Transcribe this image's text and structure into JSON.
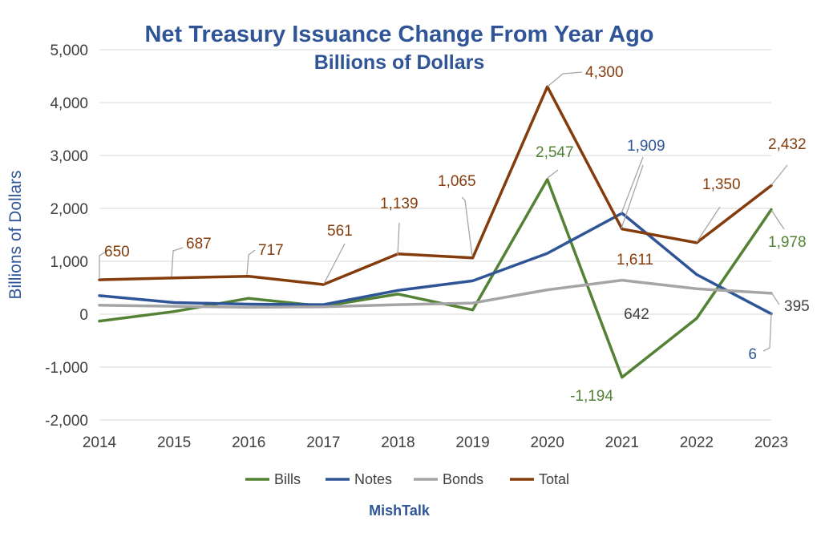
{
  "chart_data": {
    "type": "line",
    "title": "Net Treasury Issuance Change From Year Ago",
    "subtitle": "Billions of Dollars",
    "xlabel": "",
    "ylabel": "Billions of Dollars",
    "ylim": [
      -2000,
      5000
    ],
    "yticks": [
      -2000,
      -1000,
      0,
      1000,
      2000,
      3000,
      4000,
      5000
    ],
    "ytick_labels": [
      "-2,000",
      "-1,000",
      "0",
      "1,000",
      "2,000",
      "3,000",
      "4,000",
      "5,000"
    ],
    "x": [
      "2014",
      "2015",
      "2016",
      "2017",
      "2018",
      "2019",
      "2020",
      "2021",
      "2022",
      "2023"
    ],
    "grid": true,
    "legend_position": "bottom",
    "series": [
      {
        "name": "Bills",
        "color": "#548235",
        "values": [
          -130,
          50,
          300,
          150,
          380,
          80,
          2547,
          -1194,
          -80,
          1978
        ]
      },
      {
        "name": "Notes",
        "color": "#2f5597",
        "values": [
          350,
          220,
          190,
          180,
          450,
          630,
          1150,
          1909,
          750,
          6
        ]
      },
      {
        "name": "Bonds",
        "color": "#a5a5a5",
        "values": [
          170,
          150,
          130,
          140,
          180,
          210,
          460,
          642,
          480,
          395
        ]
      },
      {
        "name": "Total",
        "color": "#843c0c",
        "values": [
          650,
          687,
          717,
          561,
          1139,
          1065,
          4300,
          1611,
          1350,
          2432
        ]
      }
    ],
    "annotations": [
      {
        "series": "Total",
        "x": "2014",
        "text": "650"
      },
      {
        "series": "Total",
        "x": "2015",
        "text": "687"
      },
      {
        "series": "Total",
        "x": "2016",
        "text": "717"
      },
      {
        "series": "Total",
        "x": "2017",
        "text": "561"
      },
      {
        "series": "Total",
        "x": "2018",
        "text": "1,139"
      },
      {
        "series": "Total",
        "x": "2019",
        "text": "1,065"
      },
      {
        "series": "Total",
        "x": "2020",
        "text": "4,300"
      },
      {
        "series": "Total",
        "x": "2021",
        "text": "1,611"
      },
      {
        "series": "Total",
        "x": "2022",
        "text": "1,350"
      },
      {
        "series": "Total",
        "x": "2023",
        "text": "2,432"
      },
      {
        "series": "Bills",
        "x": "2020",
        "text": "2,547"
      },
      {
        "series": "Bills",
        "x": "2021",
        "text": "-1,194"
      },
      {
        "series": "Bills",
        "x": "2023",
        "text": "1,978"
      },
      {
        "series": "Notes",
        "x": "2021",
        "text": "1,909"
      },
      {
        "series": "Notes",
        "x": "2023",
        "text": "6"
      },
      {
        "series": "Bonds",
        "x": "2021",
        "text": "642"
      },
      {
        "series": "Bonds",
        "x": "2023",
        "text": "395"
      }
    ]
  },
  "footer": {
    "brand": "MishTalk"
  }
}
